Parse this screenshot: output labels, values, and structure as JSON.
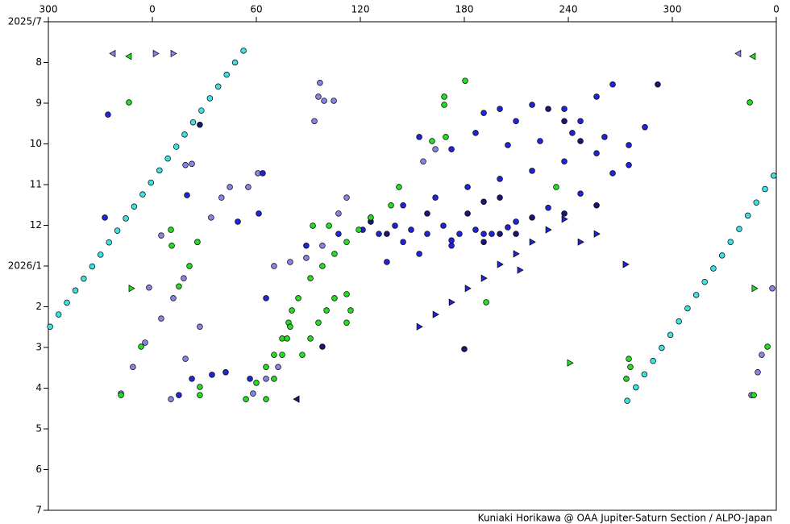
{
  "chart_data": {
    "type": "scatter",
    "credit": "Kuniaki Horikawa @ OAA Jupiter-Saturn Section / ALPO-Japan",
    "xlim": [
      300,
      720
    ],
    "xticks": [
      300,
      {
        "value": 360,
        "label": "0"
      },
      {
        "value": 420,
        "label": "60"
      },
      {
        "value": 480,
        "label": "120"
      },
      {
        "value": 540,
        "label": "180"
      },
      {
        "value": 600,
        "label": "240"
      },
      {
        "value": 660,
        "label": "300"
      },
      {
        "value": 720,
        "label": "0"
      }
    ],
    "ylim": [
      0,
      12
    ],
    "y_inverted": true,
    "yticks": [
      {
        "value": 0,
        "label": "2025/7"
      },
      {
        "value": 1,
        "label": "8"
      },
      {
        "value": 2,
        "label": "9"
      },
      {
        "value": 3,
        "label": "10"
      },
      {
        "value": 4,
        "label": "11"
      },
      {
        "value": 5,
        "label": "12"
      },
      {
        "value": 6,
        "label": "2026/1"
      },
      {
        "value": 7,
        "label": "2"
      },
      {
        "value": 8,
        "label": "3"
      },
      {
        "value": 9,
        "label": "4"
      },
      {
        "value": 10,
        "label": "5"
      },
      {
        "value": 11,
        "label": "6"
      },
      {
        "value": 12,
        "label": "7"
      }
    ],
    "series": [
      {
        "color": "#3fe0e0",
        "marker": "circle",
        "x": [
          301.0,
          305.9,
          310.7,
          315.6,
          320.4,
          325.3,
          330.1,
          335.0,
          339.8,
          344.7,
          349.5,
          354.4,
          359.2,
          364.1,
          368.9,
          373.8,
          378.6,
          383.5,
          388.3,
          393.2,
          398.0,
          402.9,
          407.7,
          412.6,
          634.0,
          639.0,
          643.9,
          648.9,
          653.9,
          658.9,
          663.8,
          668.8,
          673.8,
          678.7,
          683.7,
          688.7,
          693.6,
          698.6,
          703.6,
          708.5,
          713.5,
          718.5
        ],
        "values": [
          7.49,
          7.19,
          6.9,
          6.6,
          6.31,
          6.01,
          5.72,
          5.42,
          5.13,
          4.83,
          4.54,
          4.24,
          3.95,
          3.65,
          3.36,
          3.07,
          2.77,
          2.47,
          2.18,
          1.88,
          1.59,
          1.3,
          1.0,
          0.71,
          9.31,
          8.98,
          8.66,
          8.33,
          8.01,
          7.69,
          7.36,
          7.04,
          6.71,
          6.39,
          6.06,
          5.74,
          5.41,
          5.09,
          4.76,
          4.44,
          4.11,
          3.78
        ]
      },
      {
        "color": "#8585e6",
        "marker": "circle",
        "x": [
          341.9,
          348.8,
          355.8,
          365.1,
          372.1,
          378.1,
          386.0,
          393.9,
          399.9,
          404.7,
          370.7,
          379.1,
          387.4,
          420.9,
          415.3,
          705.6,
          709.3,
          711.6,
          453.5,
          455.8,
          459.1,
          464.7,
          456.7,
          430.2,
          439.5,
          448.8,
          458.1,
          467.4,
          472.1,
          523.3,
          516.3,
          418.1,
          425.6,
          432.6,
          379.1,
          382.8,
          717.7,
          358.1,
          365.1
        ],
        "values": [
          9.13,
          8.48,
          7.88,
          7.29,
          6.79,
          6.3,
          5.41,
          4.81,
          4.32,
          4.06,
          9.27,
          8.28,
          7.49,
          3.72,
          4.06,
          9.17,
          8.61,
          8.18,
          2.44,
          1.84,
          1.94,
          1.94,
          1.5,
          6.0,
          5.9,
          5.8,
          5.5,
          4.71,
          4.32,
          3.13,
          3.43,
          9.13,
          8.77,
          8.48,
          3.52,
          3.49,
          6.55,
          6.53,
          5.25
        ]
      },
      {
        "color": "#2323d8",
        "marker": "circle",
        "x": [
          448.8,
          467.4,
          486.0,
          504.7,
          523.3,
          541.9,
          560.5,
          579.1,
          597.7,
          616.3,
          634.9,
          644.2,
          495.3,
          514.0,
          532.6,
          551.2,
          569.8,
          588.4,
          607.0,
          625.6,
          634.9,
          481.4,
          490.7,
          500.0,
          509.3,
          518.6,
          527.9,
          537.2,
          546.5,
          555.8,
          565.1,
          504.7,
          532.6,
          551.2,
          560.5,
          569.8,
          579.1,
          597.7,
          607.0,
          616.3,
          625.6,
          514.0,
          532.6,
          546.5,
          565.1,
          583.7,
          602.3,
          620.9,
          334.4,
          332.6,
          380.0,
          423.7,
          409.3,
          421.4,
          425.6,
          416.3,
          375.3,
          382.8,
          394.4,
          402.3
        ],
        "values": [
          5.5,
          5.21,
          4.81,
          4.51,
          4.32,
          4.06,
          3.86,
          3.66,
          3.43,
          3.23,
          3.03,
          2.59,
          5.9,
          5.7,
          5.5,
          5.21,
          4.91,
          4.57,
          4.22,
          3.72,
          3.52,
          5.11,
          5.21,
          5.01,
          5.11,
          5.21,
          5.01,
          5.21,
          5.11,
          5.21,
          5.05,
          5.41,
          5.37,
          2.24,
          2.14,
          2.44,
          2.04,
          2.14,
          2.44,
          1.84,
          1.54,
          2.83,
          3.13,
          2.73,
          3.03,
          2.93,
          2.73,
          2.83,
          2.28,
          4.81,
          4.26,
          3.72,
          4.91,
          4.71,
          6.79,
          8.77,
          9.17,
          8.77,
          8.67,
          8.61
        ]
      },
      {
        "color": "#181870",
        "marker": "circle",
        "x": [
          387.4,
          651.6,
          486.0,
          495.3,
          518.6,
          541.9,
          551.2,
          560.5,
          569.8,
          579.1,
          597.7,
          607.0,
          588.4,
          458.1,
          540.0,
          597.7,
          616.3,
          551.2,
          560.5
        ],
        "values": [
          2.53,
          1.54,
          4.91,
          5.21,
          4.71,
          4.71,
          4.42,
          4.32,
          5.21,
          4.81,
          2.44,
          2.93,
          2.14,
          7.98,
          8.04,
          4.71,
          4.51,
          5.41,
          5.21
        ]
      },
      {
        "color": "#22dd22",
        "marker": "circle",
        "x": [
          414.0,
          420.0,
          425.6,
          430.2,
          434.9,
          438.6,
          440.5,
          444.2,
          451.2,
          458.1,
          465.1,
          472.1,
          479.1,
          486.0,
          497.7,
          502.3,
          425.6,
          430.2,
          434.9,
          437.7,
          439.5,
          446.5,
          451.2,
          455.8,
          460.5,
          465.1,
          472.1,
          474.4,
          472.1,
          341.9,
          353.5,
          375.3,
          381.4,
          386.0,
          370.7,
          346.5,
          371.2,
          387.4,
          387.4,
          633.5,
          634.9,
          635.8,
          704.7,
          714.9,
          452.6,
          461.9,
          521.4,
          528.4,
          528.4,
          540.5,
          552.6,
          593.0,
          529.3,
          707.0
        ],
        "values": [
          9.27,
          8.87,
          8.48,
          8.18,
          7.78,
          7.39,
          7.09,
          6.79,
          6.3,
          6.0,
          5.7,
          5.41,
          5.11,
          4.81,
          4.51,
          4.06,
          9.27,
          8.77,
          8.18,
          7.78,
          7.49,
          8.18,
          7.78,
          7.39,
          7.09,
          6.79,
          6.69,
          7.09,
          7.39,
          9.17,
          7.98,
          6.5,
          6.0,
          5.41,
          5.11,
          1.98,
          5.5,
          8.97,
          9.17,
          8.77,
          8.28,
          8.48,
          1.98,
          7.98,
          5.01,
          5.01,
          2.93,
          1.84,
          2.04,
          1.45,
          6.89,
          4.06,
          2.83,
          9.17
        ]
      },
      {
        "color": "#8585e6",
        "marker": "triangle-left",
        "x": [
          337.2,
          698.1
        ],
        "values": [
          0.78,
          0.78
        ]
      },
      {
        "color": "#8585e6",
        "marker": "triangle-right",
        "x": [
          361.9,
          372.1
        ],
        "values": [
          0.78,
          0.78
        ]
      },
      {
        "color": "#22dd22",
        "marker": "triangle-left",
        "x": [
          346.5,
          706.5
        ],
        "values": [
          0.85,
          0.85
        ]
      },
      {
        "color": "#22dd22",
        "marker": "triangle-right",
        "x": [
          347.9,
          707.4,
          600.9
        ],
        "values": [
          6.55,
          6.55,
          8.38
        ]
      },
      {
        "color": "#2323d8",
        "marker": "triangle-right",
        "x": [
          514.0,
          523.3,
          532.6,
          541.9,
          551.2,
          560.5,
          569.8,
          579.1,
          588.4,
          597.7,
          607.0,
          616.3,
          633.0,
          572.1
        ],
        "values": [
          7.49,
          7.19,
          6.89,
          6.55,
          6.3,
          5.96,
          5.7,
          5.41,
          5.11,
          4.85,
          5.41,
          5.21,
          5.96,
          6.1
        ]
      },
      {
        "color": "#181870",
        "marker": "triangle-left",
        "x": [
          443.3
        ],
        "values": [
          9.27
        ]
      }
    ]
  }
}
